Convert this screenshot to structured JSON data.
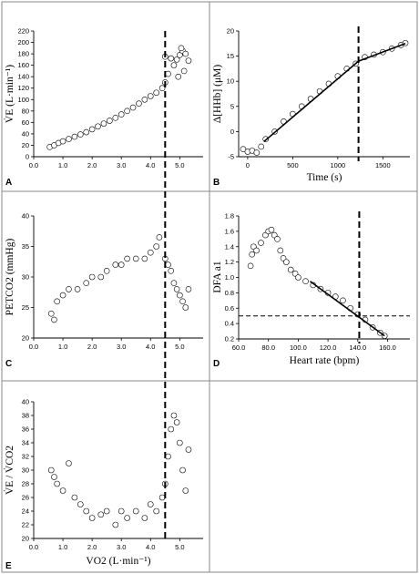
{
  "chart_data": [
    {
      "panel": "A",
      "type": "scatter",
      "ylabel": "V̇E (L·min⁻¹)",
      "xlabel": "",
      "xlim": [
        0,
        5.8
      ],
      "ylim": [
        0,
        220
      ],
      "xticks": [
        "0.0",
        "1.0",
        "2.0",
        "3.0",
        "4.0",
        "5.0"
      ],
      "yticks": [
        "0",
        "20",
        "40",
        "60",
        "80",
        "100",
        "120",
        "140",
        "160",
        "180",
        "200",
        "220"
      ],
      "threshold_x": 4.5,
      "series": [
        {
          "points": [
            [
              0.55,
              17
            ],
            [
              0.7,
              20
            ],
            [
              0.85,
              24
            ],
            [
              1.0,
              27
            ],
            [
              1.2,
              31
            ],
            [
              1.4,
              35
            ],
            [
              1.6,
              39
            ],
            [
              1.8,
              43
            ],
            [
              2.0,
              48
            ],
            [
              2.2,
              53
            ],
            [
              2.4,
              58
            ],
            [
              2.6,
              63
            ],
            [
              2.8,
              68
            ],
            [
              3.0,
              74
            ],
            [
              3.2,
              80
            ],
            [
              3.4,
              86
            ],
            [
              3.6,
              93
            ],
            [
              3.8,
              100
            ],
            [
              4.0,
              106
            ],
            [
              4.2,
              112
            ],
            [
              4.4,
              120
            ],
            [
              4.5,
              130
            ],
            [
              4.6,
              145
            ],
            [
              4.8,
              160
            ],
            [
              4.9,
              170
            ],
            [
              5.0,
              178
            ],
            [
              5.1,
              185
            ],
            [
              5.2,
              180
            ],
            [
              5.3,
              168
            ],
            [
              5.15,
              150
            ],
            [
              4.95,
              140
            ],
            [
              5.05,
              190
            ],
            [
              4.5,
              175
            ],
            [
              4.7,
              172
            ]
          ]
        }
      ]
    },
    {
      "panel": "B",
      "type": "scatter",
      "ylabel": "Δ[HHb] (μM)",
      "xlabel": "Time (s)",
      "xlim": [
        -100,
        1800
      ],
      "ylim": [
        -5,
        20
      ],
      "xticks": [
        "0",
        "500",
        "1000",
        "1500"
      ],
      "yticks": [
        "-5",
        "0",
        "5",
        "10",
        "15",
        "20"
      ],
      "threshold_x": 1230,
      "fit_lines": [
        [
          [
            180,
            -2
          ],
          [
            1230,
            14
          ]
        ],
        [
          [
            1230,
            14
          ],
          [
            1750,
            17.5
          ]
        ]
      ],
      "series": [
        {
          "points": [
            [
              -50,
              -3.5
            ],
            [
              0,
              -4
            ],
            [
              50,
              -3.8
            ],
            [
              100,
              -4.2
            ],
            [
              150,
              -3
            ],
            [
              200,
              -1.5
            ],
            [
              300,
              0
            ],
            [
              400,
              2
            ],
            [
              500,
              3.5
            ],
            [
              600,
              5
            ],
            [
              700,
              6.5
            ],
            [
              800,
              8
            ],
            [
              900,
              9.5
            ],
            [
              1000,
              11
            ],
            [
              1100,
              12.5
            ],
            [
              1200,
              13.5
            ],
            [
              1300,
              14.8
            ],
            [
              1400,
              15.3
            ],
            [
              1500,
              15.8
            ],
            [
              1600,
              16.5
            ],
            [
              1700,
              17.2
            ],
            [
              1750,
              17.6
            ]
          ]
        }
      ]
    },
    {
      "panel": "C",
      "type": "scatter",
      "ylabel": "PETCO2 (mmHg)",
      "xlabel": "",
      "xlim": [
        0,
        5.8
      ],
      "ylim": [
        20,
        40
      ],
      "xticks": [
        "0.0",
        "1.0",
        "2.0",
        "3.0",
        "4.0",
        "5.0"
      ],
      "yticks": [
        "20",
        "25",
        "30",
        "35",
        "40"
      ],
      "threshold_x": 4.5,
      "series": [
        {
          "points": [
            [
              0.6,
              24
            ],
            [
              0.7,
              23
            ],
            [
              0.8,
              26
            ],
            [
              1.0,
              27
            ],
            [
              1.2,
              28
            ],
            [
              1.5,
              28
            ],
            [
              1.8,
              29
            ],
            [
              2.0,
              30
            ],
            [
              2.3,
              30
            ],
            [
              2.5,
              31
            ],
            [
              2.8,
              32
            ],
            [
              3.0,
              32
            ],
            [
              3.2,
              33
            ],
            [
              3.5,
              33
            ],
            [
              3.8,
              33
            ],
            [
              4.0,
              34
            ],
            [
              4.2,
              35
            ],
            [
              4.3,
              36.5
            ],
            [
              4.5,
              33
            ],
            [
              4.6,
              32
            ],
            [
              4.7,
              31
            ],
            [
              4.8,
              29
            ],
            [
              4.9,
              28
            ],
            [
              5.0,
              27
            ],
            [
              5.1,
              26
            ],
            [
              5.2,
              25
            ],
            [
              5.3,
              28
            ]
          ]
        }
      ]
    },
    {
      "panel": "D",
      "type": "scatter",
      "ylabel": "DFA a1",
      "xlabel": "Heart rate (bpm)",
      "xlim": [
        60,
        175
      ],
      "ylim": [
        0.2,
        1.8
      ],
      "xticks": [
        "60.0",
        "80.0",
        "100.0",
        "120.0",
        "140.0",
        "160.0"
      ],
      "yticks": [
        "0.2",
        "0.4",
        "0.6",
        "0.8",
        "1.0",
        "1.2",
        "1.4",
        "1.6",
        "1.8"
      ],
      "threshold_x": 141,
      "threshold_y": 0.5,
      "fit_lines": [
        [
          [
            108,
            0.95
          ],
          [
            158,
            0.24
          ]
        ]
      ],
      "series": [
        {
          "points": [
            [
              68,
              1.15
            ],
            [
              69,
              1.3
            ],
            [
              70,
              1.4
            ],
            [
              72,
              1.35
            ],
            [
              75,
              1.45
            ],
            [
              78,
              1.55
            ],
            [
              80,
              1.6
            ],
            [
              82,
              1.62
            ],
            [
              84,
              1.55
            ],
            [
              86,
              1.5
            ],
            [
              88,
              1.35
            ],
            [
              90,
              1.25
            ],
            [
              92,
              1.2
            ],
            [
              95,
              1.1
            ],
            [
              98,
              1.05
            ],
            [
              100,
              1.0
            ],
            [
              105,
              0.95
            ],
            [
              110,
              0.9
            ],
            [
              115,
              0.85
            ],
            [
              120,
              0.8
            ],
            [
              125,
              0.75
            ],
            [
              130,
              0.7
            ],
            [
              135,
              0.6
            ],
            [
              140,
              0.52
            ],
            [
              145,
              0.45
            ],
            [
              150,
              0.35
            ],
            [
              155,
              0.28
            ],
            [
              158,
              0.24
            ]
          ]
        }
      ]
    },
    {
      "panel": "E",
      "type": "scatter",
      "ylabel": "V̇E / V̇CO2",
      "xlabel": "VO2 (L·min⁻¹)",
      "xlim": [
        0,
        5.8
      ],
      "ylim": [
        20,
        40
      ],
      "xticks": [
        "0.0",
        "1.0",
        "2.0",
        "3.0",
        "4.0",
        "5.0"
      ],
      "yticks": [
        "20",
        "22",
        "24",
        "26",
        "28",
        "30",
        "32",
        "34",
        "36",
        "38",
        "40"
      ],
      "threshold_x": 4.5,
      "series": [
        {
          "points": [
            [
              0.6,
              30
            ],
            [
              0.7,
              29
            ],
            [
              0.8,
              28
            ],
            [
              1.0,
              27
            ],
            [
              1.2,
              31
            ],
            [
              1.4,
              26
            ],
            [
              1.6,
              25
            ],
            [
              1.8,
              24
            ],
            [
              2.0,
              23
            ],
            [
              2.3,
              23.5
            ],
            [
              2.5,
              24
            ],
            [
              2.8,
              22
            ],
            [
              3.0,
              24
            ],
            [
              3.2,
              23
            ],
            [
              3.5,
              24
            ],
            [
              3.8,
              23
            ],
            [
              4.0,
              25
            ],
            [
              4.2,
              24
            ],
            [
              4.4,
              26
            ],
            [
              4.5,
              28
            ],
            [
              4.6,
              32
            ],
            [
              4.7,
              36
            ],
            [
              4.8,
              38
            ],
            [
              4.9,
              37
            ],
            [
              5.0,
              34
            ],
            [
              5.1,
              30
            ],
            [
              5.2,
              27
            ],
            [
              5.3,
              33
            ]
          ]
        }
      ]
    }
  ]
}
